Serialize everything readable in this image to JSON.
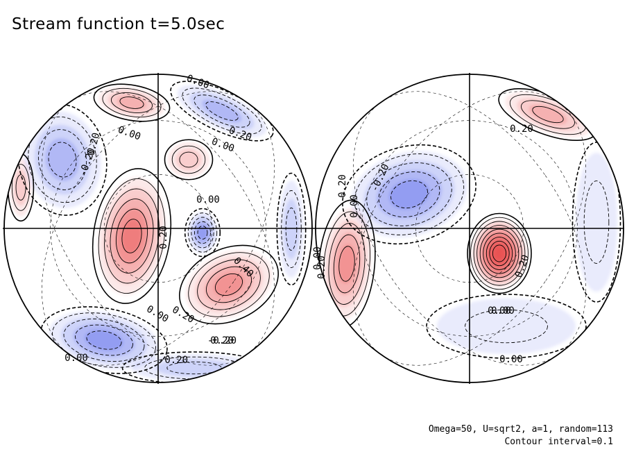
{
  "title": "Stream function t=5.0sec",
  "notes": {
    "params": "Omega=50, U=sqrt2, a=1, random=113",
    "interval": "Contour interval=0.1"
  },
  "colors": {
    "positive": "#e84a4a",
    "negative": "#4a5ae8",
    "contour": "#000000"
  },
  "chart_data": {
    "type": "heatmap",
    "projection": "orthographic, two hemispheres",
    "variable": "stream function",
    "time_sec": 5.0,
    "contour_interval": 0.1,
    "contour_style": "solid for positive values, dashed for negative values",
    "fill": "red shading for positive values, blue shading for negative values",
    "hemispheres": [
      {
        "name": "left",
        "max_value_approx": 0.5,
        "min_value_approx": -0.5,
        "contour_labels": [
          "0.00",
          "-0.20",
          "0.00",
          "-0.20",
          "0.00",
          "0.20",
          "0.20",
          "0.40",
          "0.00",
          "0.20",
          "0.20",
          "0.00",
          "-0.20",
          "-0.20",
          "0.00"
        ]
      },
      {
        "name": "right",
        "max_value_approx": 0.8,
        "min_value_approx": -0.4,
        "contour_labels": [
          "0.20",
          "-0.20",
          "0.20",
          "0.00",
          "0.00",
          "0.20",
          "0.00",
          "0.20",
          "0.00",
          "0.00"
        ]
      }
    ]
  }
}
